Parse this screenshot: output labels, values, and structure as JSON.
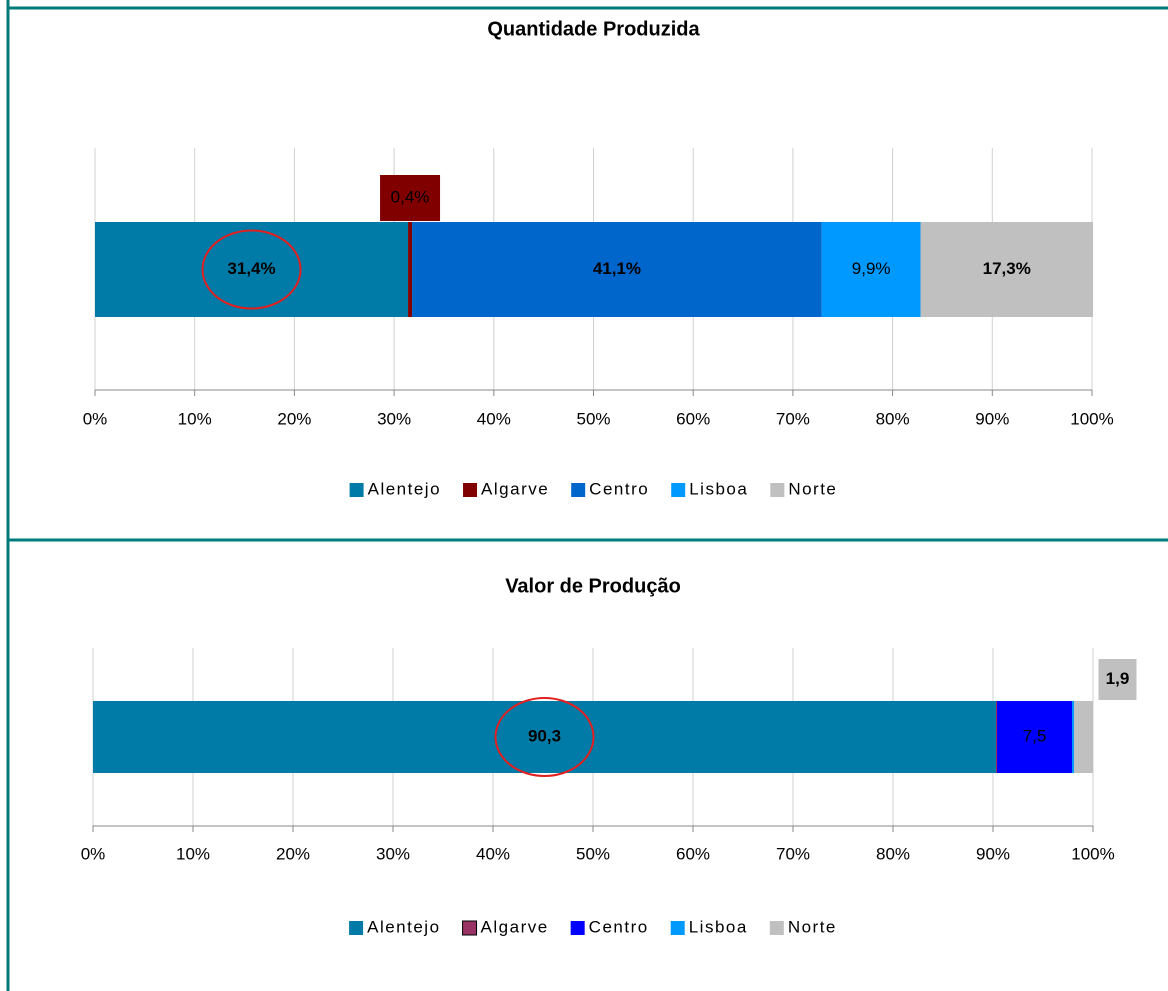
{
  "chart_data": [
    {
      "type": "bar",
      "title": "Quantidade Produzida",
      "series": [
        {
          "name": "Alentejo",
          "color": "#007ba7",
          "values": [
            31.4
          ],
          "value_labels": [
            "31,4%"
          ]
        },
        {
          "name": "Algarve",
          "color": "#800000",
          "values": [
            0.4
          ],
          "value_labels": [
            "0,4%"
          ]
        },
        {
          "name": "Centro",
          "color": "#0066cc",
          "values": [
            41.1
          ],
          "value_labels": [
            "41,1%"
          ]
        },
        {
          "name": "Lisboa",
          "color": "#0099ff",
          "values": [
            9.9
          ],
          "value_labels": [
            "9,9%"
          ]
        },
        {
          "name": "Norte",
          "color": "#c0c0c0",
          "values": [
            17.3
          ],
          "value_labels": [
            "17,3%"
          ]
        }
      ],
      "xlim": [
        0,
        100
      ],
      "xticks": [
        {
          "value": 0,
          "label": "0%"
        },
        {
          "value": 10,
          "label": "10%"
        },
        {
          "value": 20,
          "label": "20%"
        },
        {
          "value": 30,
          "label": "30%"
        },
        {
          "value": 40,
          "label": "40%"
        },
        {
          "value": 50,
          "label": "50%"
        },
        {
          "value": 60,
          "label": "60%"
        },
        {
          "value": 70,
          "label": "70%"
        },
        {
          "value": 80,
          "label": "80%"
        },
        {
          "value": 90,
          "label": "90%"
        },
        {
          "value": 100,
          "label": "100%"
        }
      ],
      "grid": true,
      "legend": "bottom"
    },
    {
      "type": "bar",
      "title": "Valor de Produção",
      "series": [
        {
          "name": "Alentejo",
          "color": "#007ba7",
          "values": [
            90.3
          ],
          "value_labels": [
            "90,3"
          ]
        },
        {
          "name": "Algarve",
          "color": "#993366",
          "values": [
            0.1
          ],
          "value_labels": [
            null
          ]
        },
        {
          "name": "Centro",
          "color": "#0000ff",
          "values": [
            7.5
          ],
          "value_labels": [
            "7,5"
          ]
        },
        {
          "name": "Lisboa",
          "color": "#0099ff",
          "values": [
            0.2
          ],
          "value_labels": [
            null
          ]
        },
        {
          "name": "Norte",
          "color": "#c0c0c0",
          "values": [
            1.9
          ],
          "value_labels": [
            "1,9"
          ]
        }
      ],
      "xlim": [
        0,
        100
      ],
      "xticks": [
        {
          "value": 0,
          "label": "0%"
        },
        {
          "value": 10,
          "label": "10%"
        },
        {
          "value": 20,
          "label": "20%"
        },
        {
          "value": 30,
          "label": "30%"
        },
        {
          "value": 40,
          "label": "40%"
        },
        {
          "value": 50,
          "label": "50%"
        },
        {
          "value": 60,
          "label": "60%"
        },
        {
          "value": 70,
          "label": "70%"
        },
        {
          "value": 80,
          "label": "80%"
        },
        {
          "value": 90,
          "label": "90%"
        },
        {
          "value": 100,
          "label": "100%"
        }
      ],
      "grid": true,
      "legend": "bottom"
    }
  ]
}
